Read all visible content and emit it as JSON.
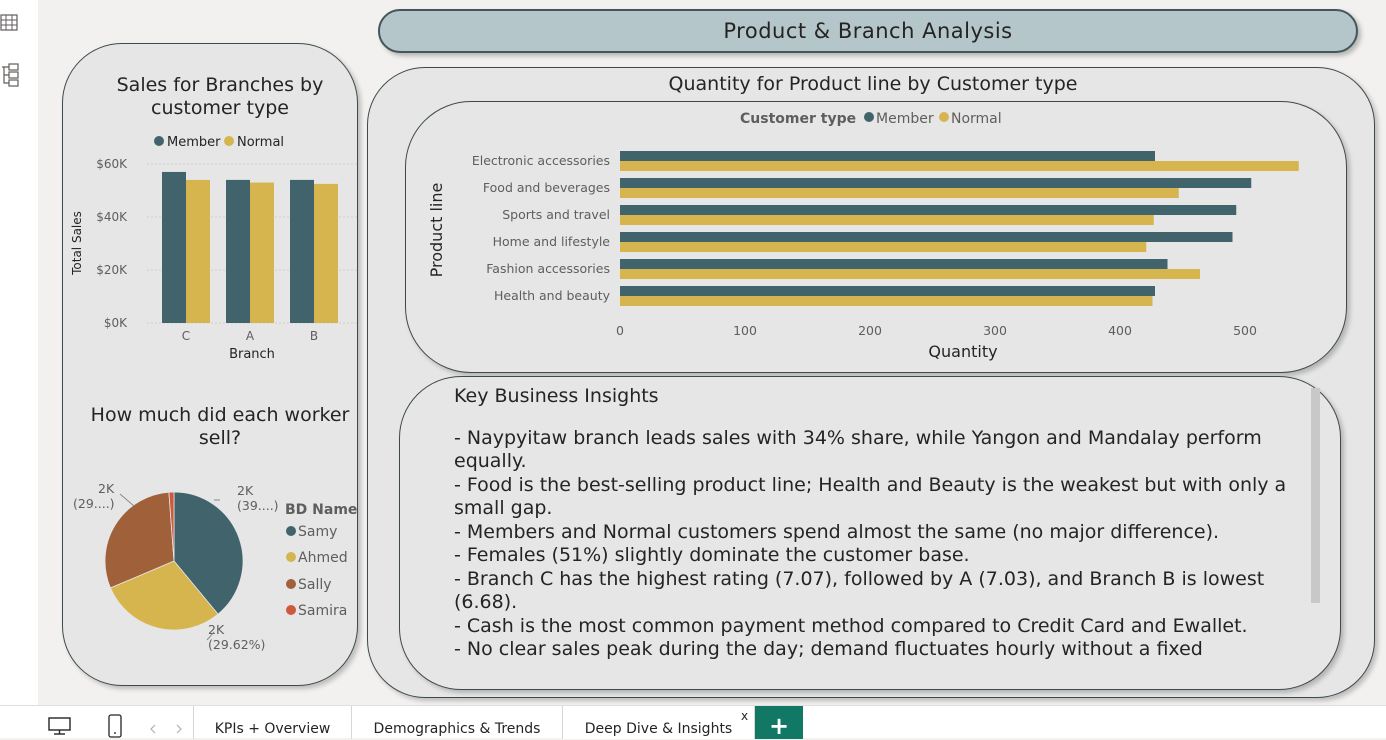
{
  "report": {
    "page_title": "Product & Branch Analysis"
  },
  "colors": {
    "member": "#41636c",
    "normal": "#d6b44e",
    "samy": "#41636c",
    "ahmed": "#d6b44e",
    "sally": "#a0603a",
    "samira": "#d0583e"
  },
  "left_rail": {
    "icons": [
      "table-view-icon",
      "model-view-icon"
    ]
  },
  "branches_chart": {
    "legend_items": [
      "Member",
      "Normal"
    ]
  },
  "worker_chart": {
    "legend_title": "BD Name",
    "legend_items": [
      "Samy",
      "Ahmed",
      "Sally",
      "Samira"
    ],
    "slice_labels": [
      {
        "value": "2K",
        "pct": "(39....)"
      },
      {
        "value": "2K",
        "pct": "(29.62%)"
      },
      {
        "value": "2K",
        "pct": "(29....)"
      }
    ]
  },
  "product_chart": {
    "legend_title": "Customer type",
    "legend_items": [
      "Member",
      "Normal"
    ]
  },
  "chart_data": [
    {
      "type": "bar",
      "title": "Sales for Branches by customer type",
      "xlabel": "Branch",
      "ylabel": "Total Sales",
      "categories": [
        "C",
        "A",
        "B"
      ],
      "series": [
        {
          "name": "Member",
          "values": [
            57000,
            54000,
            54000
          ]
        },
        {
          "name": "Normal",
          "values": [
            54000,
            53000,
            52500
          ]
        }
      ],
      "yticks": [
        "$0K",
        "$20K",
        "$40K",
        "$60K"
      ],
      "ylim": [
        0,
        60000
      ],
      "grid": true,
      "legend": "top"
    },
    {
      "type": "pie",
      "title": "How much did each worker sell?",
      "legend_title": "BD Name",
      "series": [
        {
          "name": "Samy",
          "value": 39.0
        },
        {
          "name": "Ahmed",
          "value": 29.62
        },
        {
          "name": "Sally",
          "value": 30.2
        },
        {
          "name": "Samira",
          "value": 1.18
        }
      ],
      "legend": "right"
    },
    {
      "type": "bar",
      "orientation": "horizontal",
      "title": "Quantity for Product line by Customer type",
      "xlabel": "Quantity",
      "ylabel": "Product line",
      "categories": [
        "Electronic accessories",
        "Food and beverages",
        "Sports and travel",
        "Home and lifestyle",
        "Fashion accessories",
        "Health and beauty"
      ],
      "series": [
        {
          "name": "Member",
          "values": [
            428,
            505,
            493,
            490,
            438,
            428
          ]
        },
        {
          "name": "Normal",
          "values": [
            543,
            447,
            427,
            421,
            464,
            426
          ]
        }
      ],
      "xticks": [
        "0",
        "100",
        "200",
        "300",
        "400",
        "500"
      ],
      "xlim": [
        0,
        560
      ],
      "legend": "top"
    }
  ],
  "insights": {
    "title": "Key Business Insights",
    "lines": [
      "- Naypyitaw branch leads sales with 34% share, while Yangon and Mandalay perform equally.",
      "- Food is the best-selling product line; Health and Beauty is the weakest but with only a small gap.",
      "- Members and Normal customers spend almost the same (no major difference).",
      "- Females (51%) slightly dominate the customer base.",
      "- Branch C has the highest rating (7.07), followed by A (7.03), and Branch B is lowest (6.68).",
      "- Cash is the most common payment method compared to Credit Card and Ewallet.",
      "- No clear sales peak during the day; demand fluctuates hourly without a fixed"
    ]
  },
  "tabs": {
    "items": [
      "KPIs + Overview",
      "Demographics & Trends",
      "Deep Dive & Insights"
    ],
    "active": "Deep Dive & Insights",
    "close_label": "x",
    "add_label": "+"
  }
}
